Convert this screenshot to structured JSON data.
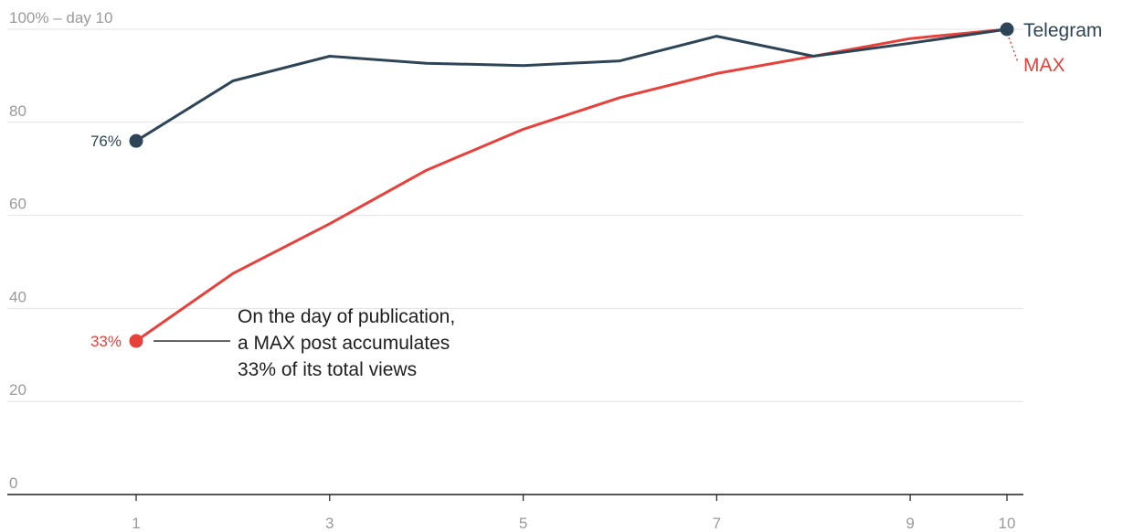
{
  "chart_data": {
    "type": "line",
    "x": [
      1,
      2,
      3,
      4,
      5,
      6,
      7,
      8,
      9,
      10
    ],
    "xticks": [
      "1",
      "3",
      "5",
      "7",
      "9",
      "10"
    ],
    "xtick_values": [
      1,
      3,
      5,
      7,
      9,
      10
    ],
    "yticks": [
      "100% – day 10",
      "80",
      "60",
      "40",
      "20",
      "0"
    ],
    "ytick_values": [
      100,
      80,
      60,
      40,
      20,
      0
    ],
    "xlim": [
      1,
      10
    ],
    "ylim": [
      0,
      100
    ],
    "grid": true,
    "series": [
      {
        "name": "Telegram",
        "color": "#2e4557",
        "values": [
          76,
          88.9,
          94.2,
          92.7,
          92.2,
          93.2,
          98.5,
          94.2,
          97,
          100
        ],
        "start_label": "76%"
      },
      {
        "name": "MAX",
        "color": "#e8413b",
        "values": [
          33,
          47.5,
          58.2,
          69.7,
          78.5,
          85.3,
          90.5,
          94.2,
          98,
          100
        ],
        "start_label": "33%"
      }
    ],
    "annotation": {
      "lines": [
        "On the day of publication,",
        "a MAX post accumulates",
        "33% of its total views"
      ]
    }
  }
}
